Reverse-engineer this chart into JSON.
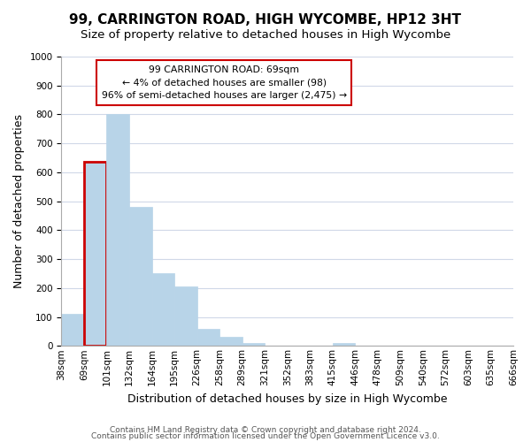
{
  "title": "99, CARRINGTON ROAD, HIGH WYCOMBE, HP12 3HT",
  "subtitle": "Size of property relative to detached houses in High Wycombe",
  "xlabel": "Distribution of detached houses by size in High Wycombe",
  "ylabel": "Number of detached properties",
  "bin_labels": [
    "38sqm",
    "69sqm",
    "101sqm",
    "132sqm",
    "164sqm",
    "195sqm",
    "226sqm",
    "258sqm",
    "289sqm",
    "321sqm",
    "352sqm",
    "383sqm",
    "415sqm",
    "446sqm",
    "478sqm",
    "509sqm",
    "540sqm",
    "572sqm",
    "603sqm",
    "635sqm",
    "666sqm"
  ],
  "bar_values": [
    110,
    635,
    800,
    480,
    250,
    205,
    60,
    30,
    10,
    0,
    0,
    0,
    10,
    0,
    0,
    0,
    0,
    0,
    0,
    0
  ],
  "bar_color": "#b8d4e8",
  "highlight_bar_index": 1,
  "ylim": [
    0,
    1000
  ],
  "yticks": [
    0,
    100,
    200,
    300,
    400,
    500,
    600,
    700,
    800,
    900,
    1000
  ],
  "annotation_title": "99 CARRINGTON ROAD: 69sqm",
  "annotation_line1": "← 4% of detached houses are smaller (98)",
  "annotation_line2": "96% of semi-detached houses are larger (2,475) →",
  "annotation_box_color": "#ffffff",
  "annotation_border_color": "#cc0000",
  "footer_line1": "Contains HM Land Registry data © Crown copyright and database right 2024.",
  "footer_line2": "Contains public sector information licensed under the Open Government Licence v3.0.",
  "bg_color": "#ffffff",
  "grid_color": "#d0d8e8",
  "title_fontsize": 11,
  "subtitle_fontsize": 9.5,
  "xlabel_fontsize": 9,
  "ylabel_fontsize": 9,
  "tick_fontsize": 7.5,
  "footer_fontsize": 6.5
}
